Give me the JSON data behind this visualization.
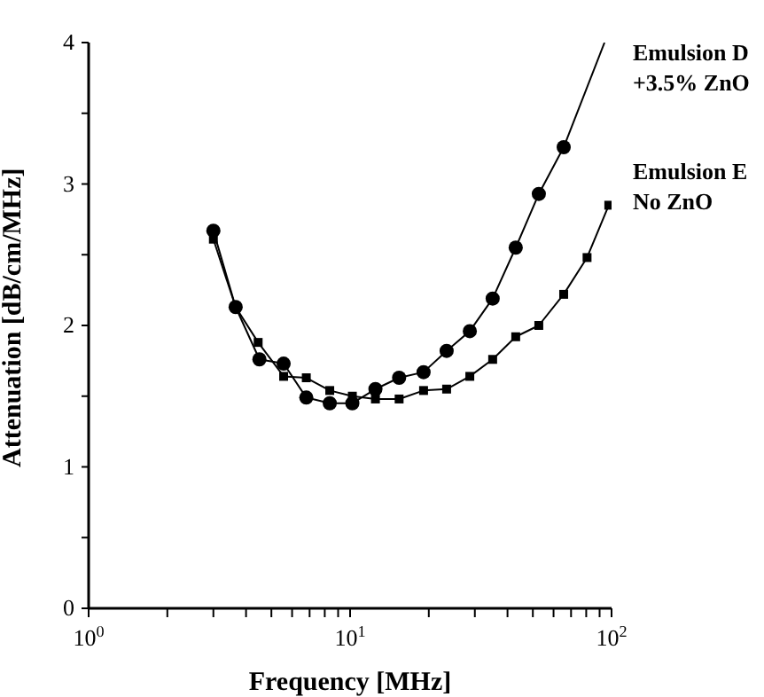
{
  "chart_data": {
    "type": "line",
    "xlabel": "Frequency [MHz]",
    "ylabel": "Attenuation [dB/cm/MHz]",
    "log": "x",
    "xlim": [
      1,
      100
    ],
    "ylim": [
      0,
      4
    ],
    "xticks": [
      {
        "value": 1,
        "label": "10$^{0}$"
      },
      {
        "value": 2,
        "label": null
      },
      {
        "value": 3,
        "label": null
      },
      {
        "value": 4,
        "label": null
      },
      {
        "value": 5,
        "label": null
      },
      {
        "value": 6,
        "label": null
      },
      {
        "value": 7,
        "label": null
      },
      {
        "value": 8,
        "label": null
      },
      {
        "value": 9,
        "label": null
      },
      {
        "value": 10,
        "label": "10$^{1}$"
      },
      {
        "value": 20,
        "label": null
      },
      {
        "value": 30,
        "label": null
      },
      {
        "value": 40,
        "label": null
      },
      {
        "value": 50,
        "label": null
      },
      {
        "value": 60,
        "label": null
      },
      {
        "value": 70,
        "label": null
      },
      {
        "value": 80,
        "label": null
      },
      {
        "value": 90,
        "label": null
      },
      {
        "value": 100,
        "label": "10$^{2}$"
      }
    ],
    "yticks": [
      0,
      {
        "value": 0.5,
        "label": null
      },
      1,
      {
        "value": 1.5,
        "label": null
      },
      2,
      {
        "value": 2.5,
        "label": null
      },
      3,
      {
        "value": 3.5,
        "label": null
      },
      4
    ],
    "grid": false,
    "series": [
      {
        "name": "Emulsion D\n+3.5% ZnO",
        "color": "#000000",
        "marker": "circle",
        "x": [
          3.0,
          3.65,
          4.5,
          5.57,
          6.8,
          8.36,
          10.2,
          12.5,
          15.4,
          19.1,
          23.4,
          28.7,
          35.1,
          43,
          52.7,
          65.6
        ],
        "values": [
          2.67,
          2.13,
          1.76,
          1.73,
          1.49,
          1.45,
          1.45,
          1.55,
          1.63,
          1.67,
          1.82,
          1.96,
          2.19,
          2.55,
          2.93,
          3.26
        ]
      },
      {
        "type": "line",
        "color": "#000000",
        "marker": "none",
        "x": [
          65.6,
          94
        ],
        "values": [
          3.26,
          4.0
        ]
      },
      {
        "name": "Emulsion E\nNo ZnO",
        "color": "#000000",
        "marker": "square",
        "x": [
          3.0,
          3.65,
          4.45,
          5.57,
          6.8,
          8.36,
          10.2,
          12.5,
          15.4,
          19.1,
          23.4,
          28.7,
          35.1,
          43,
          52.7,
          65.6,
          80.6,
          97.6
        ],
        "values": [
          2.61,
          2.13,
          1.88,
          1.64,
          1.63,
          1.54,
          1.5,
          1.48,
          1.48,
          1.54,
          1.55,
          1.64,
          1.76,
          1.92,
          2.0,
          2.22,
          2.48,
          2.85
        ]
      }
    ]
  }
}
